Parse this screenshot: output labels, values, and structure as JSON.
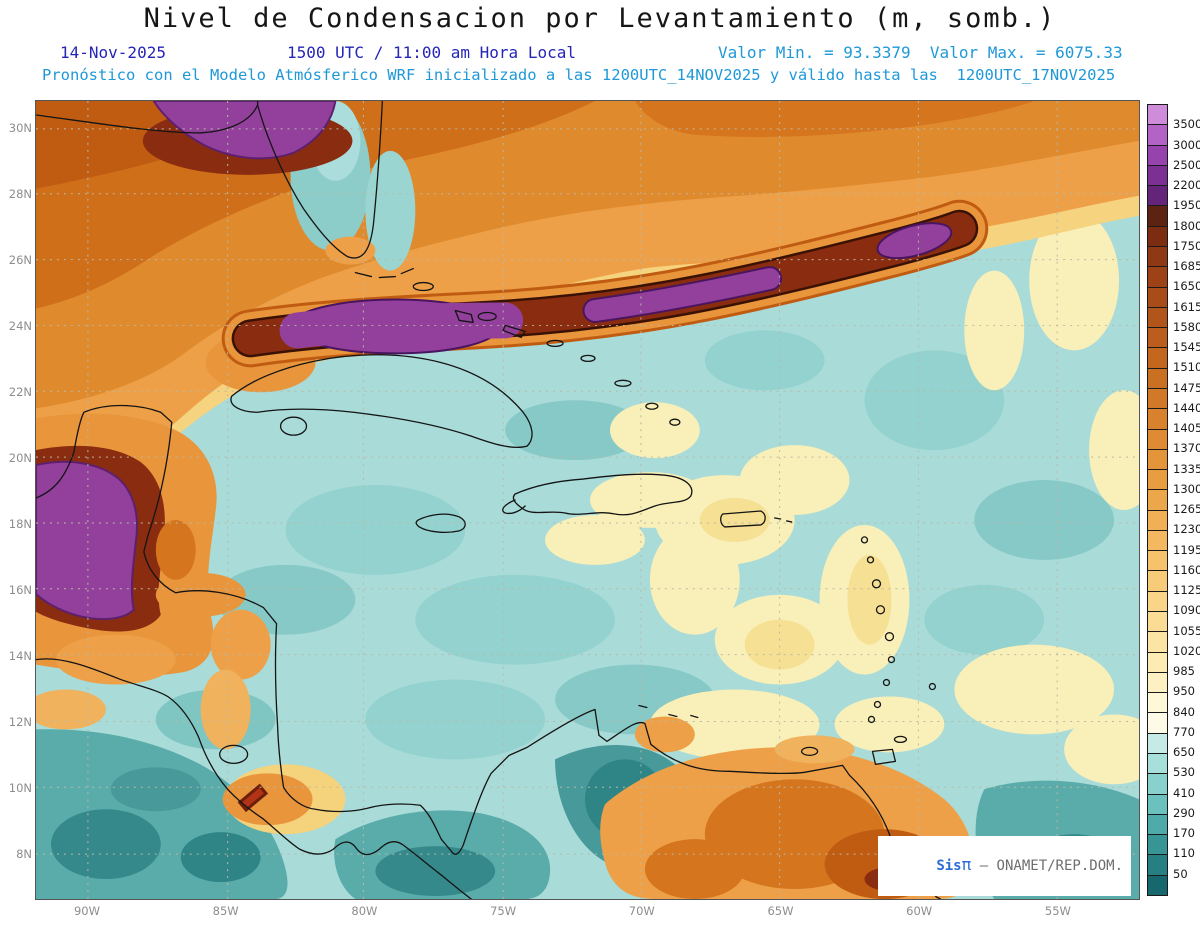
{
  "header": {
    "title": "Nivel de Condensacion por Levantamiento (m, somb.)",
    "date": "14-Nov-2025",
    "time": "1500 UTC / 11:00 am Hora Local",
    "min_max": "Valor Min. = 93.3379  Valor Max. = 6075.33",
    "forecast_line": "Pronóstico con el Modelo Atmósferico WRF inicializado a las 1200UTC_14NOV2025 y válido hasta las  1200UTC_17NOV2025"
  },
  "map": {
    "lat_ticks": [
      "30N",
      "28N",
      "26N",
      "24N",
      "22N",
      "20N",
      "18N",
      "16N",
      "14N",
      "12N",
      "10N",
      "8N"
    ],
    "lon_ticks": [
      "90W",
      "85W",
      "80W",
      "75W",
      "70W",
      "65W",
      "60W",
      "55W"
    ],
    "watermark": {
      "prefix": "Sis",
      "pi": "π",
      "suffix": "– ONAMET/REP.DOM."
    }
  },
  "colorbar": {
    "labels": [
      3500,
      3000,
      2500,
      2200,
      1950,
      1800,
      1750,
      1685,
      1650,
      1615,
      1580,
      1545,
      1510,
      1475,
      1440,
      1405,
      1370,
      1335,
      1300,
      1265,
      1230,
      1195,
      1160,
      1125,
      1090,
      1055,
      1020,
      985,
      950,
      840,
      770,
      650,
      530,
      410,
      290,
      170,
      110,
      50
    ],
    "colors": [
      "#cf8cdb",
      "#b363c6",
      "#9743ad",
      "#7c3094",
      "#63247a",
      "#5c2212",
      "#7c2c10",
      "#8f3814",
      "#9d4217",
      "#a84c19",
      "#b2551b",
      "#bb5e1d",
      "#c3671f",
      "#ca7023",
      "#d17928",
      "#d8822d",
      "#de8b33",
      "#e49439",
      "#e99d41",
      "#eda74b",
      "#f1b055",
      "#f4b960",
      "#f6c26c",
      "#f8cb79",
      "#fad487",
      "#fbdc95",
      "#fce4a4",
      "#fdebb4",
      "#fdf1c4",
      "#fef7d8",
      "#fdfbe8",
      "#c6eae5",
      "#a7dfda",
      "#88d1cc",
      "#6ac1bd",
      "#4eabaa",
      "#389596",
      "#267f83",
      "#16676e"
    ]
  },
  "chart_data": {
    "type": "heatmap",
    "title": "Nivel de Condensacion por Levantamiento (m, somb.)",
    "units": "m",
    "value_min": 93.3379,
    "value_max": 6075.33,
    "levels": [
      50,
      110,
      170,
      290,
      410,
      530,
      650,
      770,
      840,
      950,
      985,
      1020,
      1055,
      1090,
      1125,
      1160,
      1195,
      1230,
      1265,
      1300,
      1335,
      1370,
      1405,
      1440,
      1475,
      1510,
      1545,
      1580,
      1615,
      1650,
      1685,
      1750,
      1800,
      1950,
      2200,
      2500,
      3000,
      3500
    ],
    "lat_range": [
      "8N",
      "30N"
    ],
    "lon_range": [
      "90W",
      "55W"
    ],
    "model": "WRF",
    "init_time": "1200UTC_14NOV2025",
    "valid_until": "1200UTC_17NOV2025",
    "legend_position": "right"
  }
}
